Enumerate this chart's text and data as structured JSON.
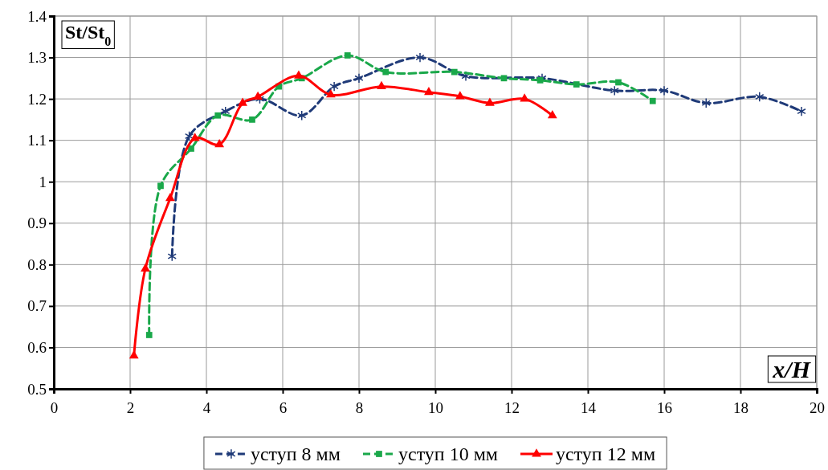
{
  "chart_data": {
    "type": "line",
    "ylabel": "St/St$_{0}$",
    "xlabel": "x/H",
    "xlim": [
      0,
      20
    ],
    "xticks": [
      0,
      2,
      4,
      6,
      8,
      10,
      12,
      14,
      16,
      18,
      20
    ],
    "ylim": [
      0.5,
      1.4
    ],
    "yticks": [
      0.5,
      0.6,
      0.7,
      0.8,
      0.9,
      1,
      1.1,
      1.2,
      1.3,
      1.4
    ],
    "grid": true,
    "legend": "bottom",
    "series": [
      {
        "name": "уступ 8 мм",
        "color": "#1f3a78",
        "marker": "cross",
        "line_style": "dashed",
        "x": [
          3.1,
          3.55,
          4.5,
          5.4,
          6.5,
          7.35,
          8.0,
          9.6,
          10.8,
          12.8,
          14.7,
          16.0,
          17.1,
          18.5,
          19.6
        ],
        "values": [
          0.82,
          1.11,
          1.17,
          1.2,
          1.16,
          1.23,
          1.25,
          1.3,
          1.255,
          1.25,
          1.22,
          1.22,
          1.19,
          1.205,
          1.17
        ]
      },
      {
        "name": "уступ 10 мм",
        "color": "#1aa84a",
        "marker": "square",
        "line_style": "dashed",
        "x": [
          2.5,
          2.8,
          3.6,
          4.3,
          5.2,
          5.9,
          6.5,
          7.7,
          8.7,
          10.5,
          11.8,
          12.75,
          13.7,
          14.8,
          15.7
        ],
        "values": [
          0.63,
          0.99,
          1.08,
          1.16,
          1.15,
          1.23,
          1.25,
          1.305,
          1.265,
          1.265,
          1.25,
          1.245,
          1.235,
          1.24,
          1.195
        ]
      },
      {
        "name": "уступ 12 мм",
        "color": "#ff0000",
        "marker": "triangle",
        "line_style": "solid",
        "x": [
          2.1,
          2.4,
          3.05,
          3.7,
          4.34,
          4.95,
          5.35,
          6.42,
          7.26,
          8.59,
          9.83,
          10.65,
          11.43,
          12.34,
          13.07
        ],
        "values": [
          0.58,
          0.79,
          0.96,
          1.105,
          1.09,
          1.19,
          1.205,
          1.256,
          1.21,
          1.23,
          1.216,
          1.206,
          1.19,
          1.2,
          1.16
        ]
      }
    ]
  }
}
